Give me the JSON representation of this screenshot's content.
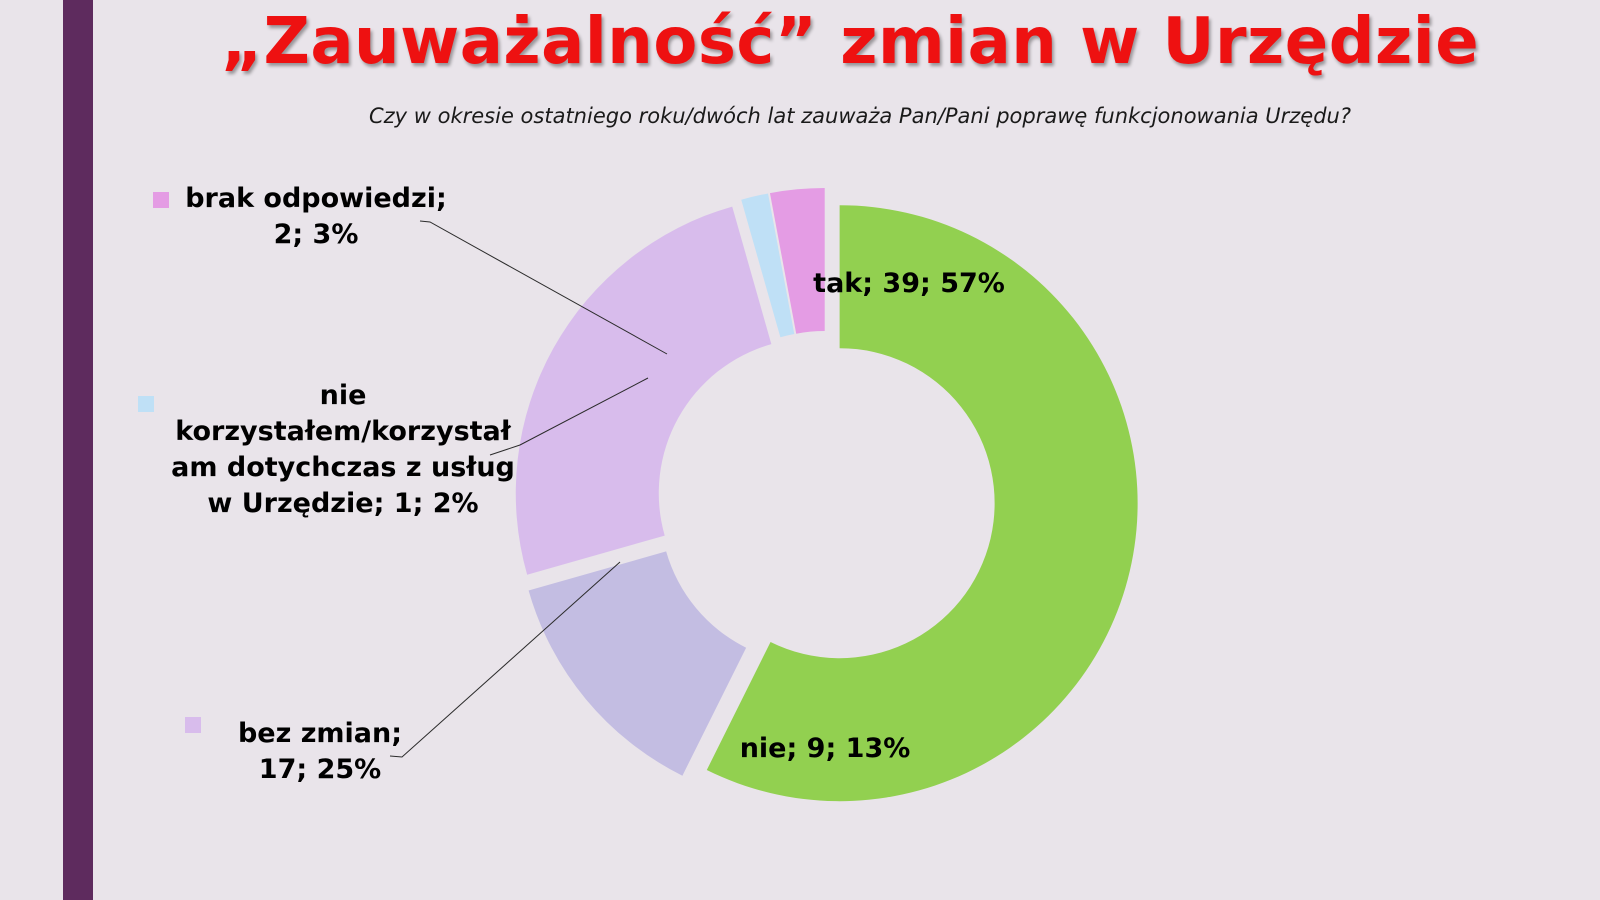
{
  "title": "„Zauważalność” zmian w Urzędzie",
  "subtitle": "Czy w okresie ostatniego roku/dwóch lat zauważa Pan/Pani poprawę funkcjonowania Urzędu?",
  "chart_data": {
    "type": "pie",
    "variant": "doughnut",
    "title": "„Zauważalność” zmian w Urzędzie",
    "subtitle": "Czy w okresie ostatniego roku/dwóch lat zauważa Pan/Pani poprawę funkcjonowania Urzędu?",
    "slices": [
      {
        "category": "tak",
        "count": 39,
        "percent": 57,
        "color": "#92d050",
        "label_lines": [
          "tak; 39; 57%"
        ],
        "label_placement": "inside"
      },
      {
        "category": "nie",
        "count": 9,
        "percent": 13,
        "color": "#c3bde2",
        "label_lines": [
          "nie; 9; 13%"
        ],
        "label_placement": "inside"
      },
      {
        "category": "bez zmian",
        "count": 17,
        "percent": 25,
        "color": "#d8bcec",
        "label_lines": [
          "bez zmian;",
          "17; 25%"
        ],
        "label_placement": "outside-left"
      },
      {
        "category": "nie korzystałem/korzystałam dotychczas z usług w Urzędzie",
        "count": 1,
        "percent": 2,
        "color": "#bfe0f6",
        "label_lines": [
          "nie",
          "korzystałem/korzystał",
          "am dotychczas z usług",
          "w Urzędzie; 1; 2%"
        ],
        "label_placement": "outside-left"
      },
      {
        "category": "brak odpowiedzi",
        "count": 2,
        "percent": 3,
        "color": "#e49ce4",
        "label_lines": [
          "brak odpowiedzi;",
          "2; 3%"
        ],
        "label_placement": "outside-left"
      }
    ],
    "start_angle_deg": 0,
    "direction": "clockwise",
    "exploded": true,
    "legend": "none"
  }
}
